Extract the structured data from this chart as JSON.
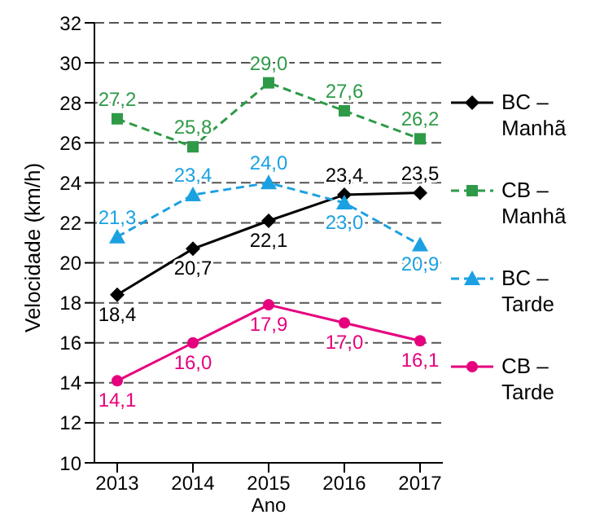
{
  "chart_data": {
    "type": "line",
    "xlabel": "Ano",
    "ylabel": "Velocidade (km/h)",
    "categories": [
      "2013",
      "2014",
      "2015",
      "2016",
      "2017"
    ],
    "ylim": [
      10,
      32
    ],
    "yticks": [
      10,
      12,
      14,
      16,
      18,
      20,
      22,
      24,
      26,
      28,
      30,
      32
    ],
    "grid": "y",
    "legend": "right",
    "series": [
      {
        "name": "BC – Manhã",
        "color": "#000000",
        "marker": "diamond",
        "line_style": "solid",
        "values": [
          18.4,
          20.7,
          22.1,
          23.4,
          23.5
        ],
        "value_labels": [
          "18,4",
          "20,7",
          "22,1",
          "23,4",
          "23,5"
        ]
      },
      {
        "name": "CB – Manhã",
        "color": "#2e9a48",
        "marker": "square",
        "line_style": "dashed",
        "values": [
          27.2,
          25.8,
          29.0,
          27.6,
          26.2
        ],
        "value_labels": [
          "27,2",
          "25,8",
          "29,0",
          "27,6",
          "26,2"
        ]
      },
      {
        "name": "BC – Tarde",
        "color": "#1ba1e2",
        "marker": "triangle",
        "line_style": "dashed",
        "values": [
          21.3,
          23.4,
          24.0,
          23.0,
          20.9
        ],
        "value_labels": [
          "21,3",
          "23,4",
          "24,0",
          "23,0",
          "20,9"
        ]
      },
      {
        "name": "CB – Tarde",
        "color": "#e6007e",
        "marker": "circle",
        "line_style": "solid",
        "values": [
          14.1,
          16.0,
          17.9,
          17.0,
          16.1
        ],
        "value_labels": [
          "14,1",
          "16,0",
          "17,9",
          "17,0",
          "16,1"
        ]
      }
    ]
  }
}
